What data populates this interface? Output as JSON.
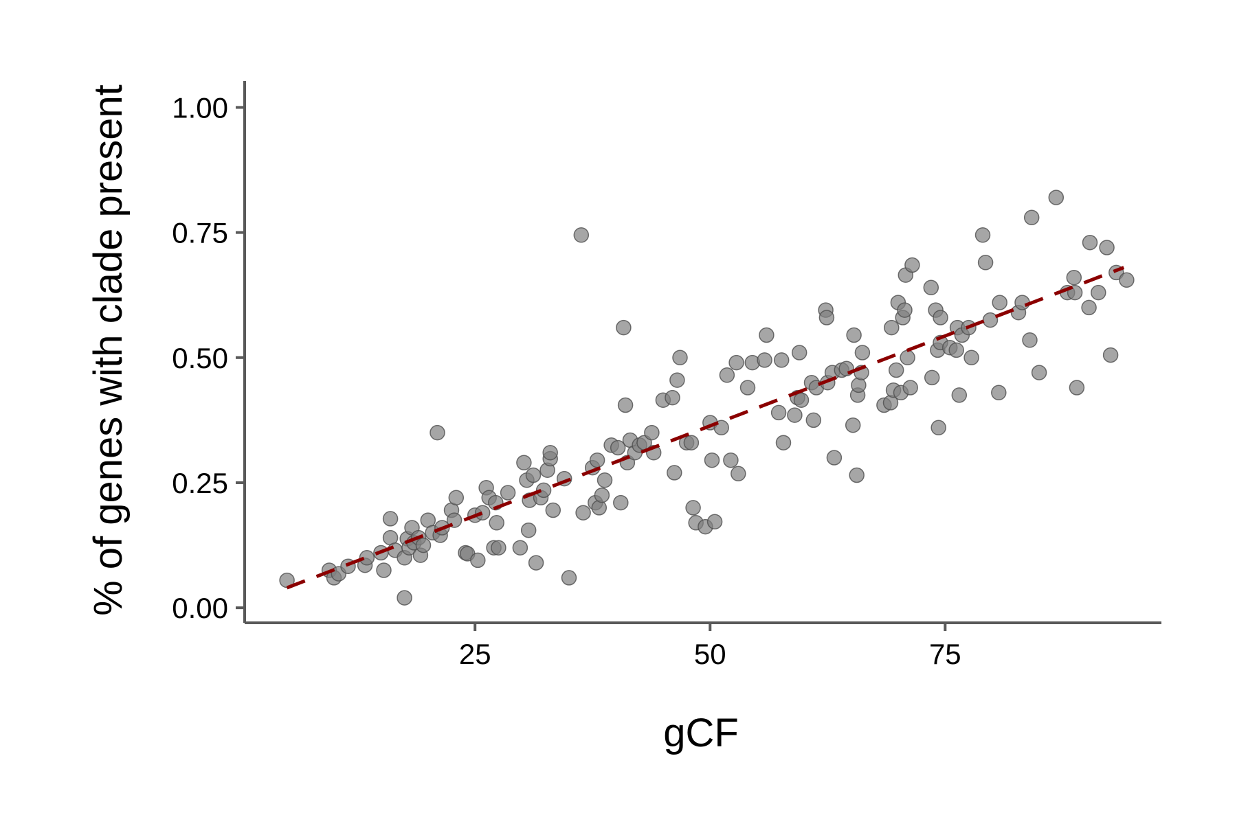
{
  "chart_data": {
    "type": "scatter",
    "xlabel": "gCF",
    "ylabel": "% of genes with clade present",
    "xlim": [
      0.5,
      98
    ],
    "ylim": [
      -0.03,
      1.05
    ],
    "x_ticks": [
      25,
      50,
      75
    ],
    "x_tick_labels": [
      "25",
      "50",
      "75"
    ],
    "y_ticks": [
      0.0,
      0.25,
      0.5,
      0.75,
      1.0
    ],
    "y_tick_labels": [
      "0.00",
      "0.25",
      "0.50",
      "0.75",
      "1.00"
    ],
    "grid": false,
    "legend": "none",
    "point_color": "#808080",
    "trend_color": "#8b0000",
    "trend_line": {
      "style": "dashed",
      "x": [
        5,
        94
      ],
      "y": [
        0.04,
        0.68
      ]
    },
    "points": [
      [
        5,
        0.055
      ],
      [
        9.5,
        0.075
      ],
      [
        10,
        0.06
      ],
      [
        10.5,
        0.068
      ],
      [
        11.5,
        0.083
      ],
      [
        13.3,
        0.085
      ],
      [
        13.5,
        0.1
      ],
      [
        15,
        0.11
      ],
      [
        15.3,
        0.075
      ],
      [
        16,
        0.178
      ],
      [
        16,
        0.14
      ],
      [
        16.5,
        0.115
      ],
      [
        17.5,
        0.02
      ],
      [
        17.5,
        0.1
      ],
      [
        17.8,
        0.138
      ],
      [
        18,
        0.12
      ],
      [
        18.3,
        0.16
      ],
      [
        18.5,
        0.13
      ],
      [
        19,
        0.14
      ],
      [
        19.2,
        0.105
      ],
      [
        19.5,
        0.125
      ],
      [
        20,
        0.175
      ],
      [
        20.5,
        0.15
      ],
      [
        21,
        0.35
      ],
      [
        21.3,
        0.145
      ],
      [
        21.5,
        0.16
      ],
      [
        22.5,
        0.195
      ],
      [
        22.8,
        0.175
      ],
      [
        23,
        0.22
      ],
      [
        24,
        0.11
      ],
      [
        24.2,
        0.108
      ],
      [
        25,
        0.185
      ],
      [
        25.3,
        0.095
      ],
      [
        25.8,
        0.19
      ],
      [
        26.2,
        0.24
      ],
      [
        26.5,
        0.22
      ],
      [
        27,
        0.12
      ],
      [
        27.2,
        0.21
      ],
      [
        27.3,
        0.17
      ],
      [
        27.5,
        0.12
      ],
      [
        28.5,
        0.23
      ],
      [
        29.8,
        0.12
      ],
      [
        30.2,
        0.29
      ],
      [
        30.5,
        0.255
      ],
      [
        30.7,
        0.155
      ],
      [
        30.8,
        0.215
      ],
      [
        31.2,
        0.265
      ],
      [
        31.5,
        0.09
      ],
      [
        32,
        0.22
      ],
      [
        32.3,
        0.235
      ],
      [
        32.7,
        0.275
      ],
      [
        33,
        0.298
      ],
      [
        33,
        0.31
      ],
      [
        33.3,
        0.195
      ],
      [
        34.5,
        0.258
      ],
      [
        35,
        0.06
      ],
      [
        36.3,
        0.745
      ],
      [
        36.5,
        0.19
      ],
      [
        37.5,
        0.28
      ],
      [
        37.8,
        0.21
      ],
      [
        38,
        0.295
      ],
      [
        38.2,
        0.2
      ],
      [
        38.5,
        0.225
      ],
      [
        38.8,
        0.255
      ],
      [
        39.5,
        0.325
      ],
      [
        40.2,
        0.32
      ],
      [
        40.5,
        0.21
      ],
      [
        40.8,
        0.56
      ],
      [
        41,
        0.405
      ],
      [
        41.2,
        0.29
      ],
      [
        41.5,
        0.335
      ],
      [
        42,
        0.31
      ],
      [
        42.5,
        0.325
      ],
      [
        43,
        0.33
      ],
      [
        43.8,
        0.35
      ],
      [
        44,
        0.31
      ],
      [
        45,
        0.415
      ],
      [
        46,
        0.42
      ],
      [
        46.2,
        0.27
      ],
      [
        46.5,
        0.455
      ],
      [
        46.8,
        0.5
      ],
      [
        47.5,
        0.33
      ],
      [
        48,
        0.33
      ],
      [
        48.2,
        0.2
      ],
      [
        48.5,
        0.17
      ],
      [
        49.5,
        0.162
      ],
      [
        50,
        0.37
      ],
      [
        50.2,
        0.295
      ],
      [
        50.5,
        0.172
      ],
      [
        51.2,
        0.36
      ],
      [
        51.8,
        0.465
      ],
      [
        52.2,
        0.295
      ],
      [
        52.8,
        0.49
      ],
      [
        53,
        0.268
      ],
      [
        54,
        0.44
      ],
      [
        54.5,
        0.49
      ],
      [
        55.8,
        0.495
      ],
      [
        56,
        0.545
      ],
      [
        57.3,
        0.39
      ],
      [
        57.6,
        0.495
      ],
      [
        57.8,
        0.33
      ],
      [
        59,
        0.385
      ],
      [
        59.3,
        0.42
      ],
      [
        59.5,
        0.51
      ],
      [
        59.7,
        0.415
      ],
      [
        60.8,
        0.45
      ],
      [
        61,
        0.375
      ],
      [
        61.3,
        0.44
      ],
      [
        62.3,
        0.595
      ],
      [
        62.4,
        0.58
      ],
      [
        62.5,
        0.45
      ],
      [
        63,
        0.47
      ],
      [
        63.2,
        0.3
      ],
      [
        64,
        0.475
      ],
      [
        64.5,
        0.478
      ],
      [
        65.2,
        0.365
      ],
      [
        65.3,
        0.545
      ],
      [
        65.6,
        0.265
      ],
      [
        65.7,
        0.425
      ],
      [
        65.8,
        0.445
      ],
      [
        66.1,
        0.47
      ],
      [
        66.2,
        0.51
      ],
      [
        68.5,
        0.405
      ],
      [
        69.2,
        0.41
      ],
      [
        69.3,
        0.56
      ],
      [
        69.5,
        0.435
      ],
      [
        69.8,
        0.475
      ],
      [
        70,
        0.61
      ],
      [
        70.3,
        0.43
      ],
      [
        70.5,
        0.58
      ],
      [
        70.7,
        0.595
      ],
      [
        70.8,
        0.665
      ],
      [
        71,
        0.5
      ],
      [
        71.3,
        0.44
      ],
      [
        71.5,
        0.685
      ],
      [
        73.5,
        0.64
      ],
      [
        73.6,
        0.46
      ],
      [
        74,
        0.595
      ],
      [
        74.2,
        0.515
      ],
      [
        74.3,
        0.36
      ],
      [
        74.5,
        0.53
      ],
      [
        74.5,
        0.58
      ],
      [
        75.5,
        0.52
      ],
      [
        76.2,
        0.515
      ],
      [
        76.3,
        0.56
      ],
      [
        76.5,
        0.425
      ],
      [
        76.8,
        0.545
      ],
      [
        77.5,
        0.56
      ],
      [
        77.8,
        0.5
      ],
      [
        79,
        0.745
      ],
      [
        79.3,
        0.69
      ],
      [
        79.8,
        0.575
      ],
      [
        80.7,
        0.43
      ],
      [
        80.8,
        0.61
      ],
      [
        82.8,
        0.59
      ],
      [
        83.2,
        0.61
      ],
      [
        84,
        0.535
      ],
      [
        84.2,
        0.78
      ],
      [
        85,
        0.47
      ],
      [
        86.8,
        0.82
      ],
      [
        88,
        0.63
      ],
      [
        88.7,
        0.66
      ],
      [
        88.8,
        0.63
      ],
      [
        89,
        0.44
      ],
      [
        90.3,
        0.6
      ],
      [
        90.4,
        0.73
      ],
      [
        91.3,
        0.63
      ],
      [
        92.2,
        0.72
      ],
      [
        92.6,
        0.505
      ],
      [
        93.2,
        0.67
      ],
      [
        94.3,
        0.655
      ]
    ]
  }
}
